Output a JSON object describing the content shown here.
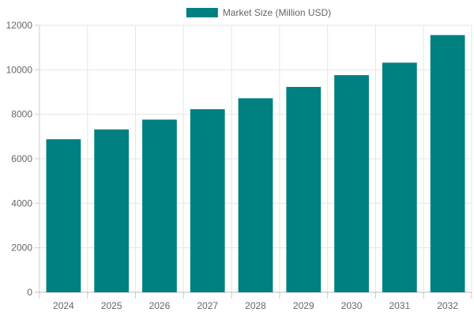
{
  "chart_data": {
    "type": "bar",
    "categories": [
      "2024",
      "2025",
      "2026",
      "2027",
      "2028",
      "2029",
      "2030",
      "2031",
      "2032"
    ],
    "series": [
      {
        "name": "Market Size (Million USD)",
        "values": [
          6880,
          7320,
          7760,
          8230,
          8720,
          9230,
          9760,
          10320,
          11560
        ],
        "color": "#008080"
      }
    ],
    "ylim": [
      0,
      12000
    ],
    "yticks": [
      0,
      2000,
      4000,
      6000,
      8000,
      10000,
      12000
    ],
    "grid": true,
    "legend_position": "top-center"
  }
}
